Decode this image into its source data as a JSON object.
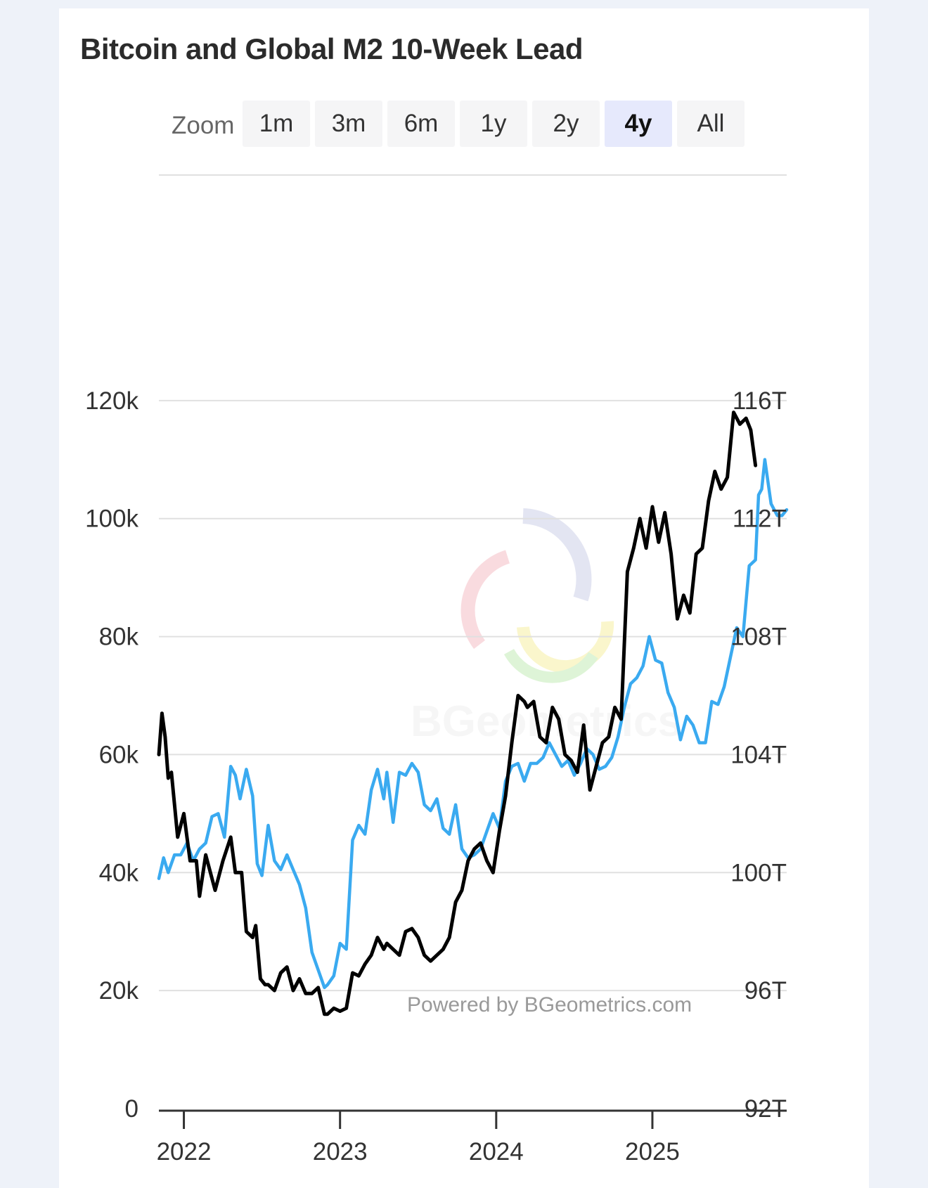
{
  "title": "Bitcoin and Global M2 10-Week Lead",
  "zoom": {
    "label": "Zoom",
    "options": [
      "1m",
      "3m",
      "6m",
      "1y",
      "2y",
      "4y",
      "All"
    ],
    "selected": "4y"
  },
  "credits": "Powered by BGeometrics.com",
  "watermark": "BGeometrics",
  "colors": {
    "btc": "#000000",
    "m2": "#3aaaf0",
    "grid": "#e0e0e0",
    "axis": "#333333",
    "zoom_active_bg": "#e6e9fc"
  },
  "chart_data": {
    "type": "line",
    "title": "Bitcoin and Global M2 10-Week Lead",
    "x_unit": "year",
    "x_ticks": [
      2022,
      2023,
      2024,
      2025
    ],
    "x_tick_labels": [
      "2022",
      "2023",
      "2024",
      "2025"
    ],
    "xlim": [
      2021.84,
      2025.86
    ],
    "y_left": {
      "ylim": [
        0,
        140000
      ],
      "ticks": [
        0,
        20000,
        40000,
        60000,
        80000,
        100000,
        120000
      ],
      "tick_labels": [
        "0",
        "20k",
        "40k",
        "60k",
        "80k",
        "100k",
        "120k"
      ]
    },
    "y_right": {
      "ylim": [
        92,
        120
      ],
      "ticks": [
        92,
        96,
        100,
        104,
        108,
        112,
        116
      ],
      "tick_labels": [
        "92T",
        "96T",
        "100T",
        "104T",
        "108T",
        "112T",
        "116T"
      ]
    },
    "grid": true,
    "series": [
      {
        "axis": "left",
        "color": "#000000",
        "x": [
          2021.84,
          2021.86,
          2021.88,
          2021.9,
          2021.92,
          2021.96,
          2022.0,
          2022.04,
          2022.08,
          2022.1,
          2022.14,
          2022.2,
          2022.25,
          2022.3,
          2022.33,
          2022.37,
          2022.4,
          2022.44,
          2022.46,
          2022.49,
          2022.52,
          2022.54,
          2022.58,
          2022.62,
          2022.66,
          2022.7,
          2022.74,
          2022.78,
          2022.82,
          2022.86,
          2022.9,
          2022.92,
          2022.96,
          2023.0,
          2023.04,
          2023.08,
          2023.12,
          2023.16,
          2023.2,
          2023.24,
          2023.28,
          2023.3,
          2023.34,
          2023.38,
          2023.42,
          2023.46,
          2023.5,
          2023.54,
          2023.58,
          2023.62,
          2023.66,
          2023.7,
          2023.74,
          2023.78,
          2023.82,
          2023.86,
          2023.9,
          2023.94,
          2023.98,
          2024.02,
          2024.06,
          2024.1,
          2024.14,
          2024.18,
          2024.2,
          2024.24,
          2024.28,
          2024.32,
          2024.36,
          2024.4,
          2024.44,
          2024.48,
          2024.52,
          2024.56,
          2024.6,
          2024.64,
          2024.68,
          2024.72,
          2024.76,
          2024.8,
          2024.84,
          2024.88,
          2024.92,
          2024.96,
          2025.0,
          2025.04,
          2025.08,
          2025.12,
          2025.16,
          2025.2,
          2025.24,
          2025.28,
          2025.32,
          2025.36,
          2025.4,
          2025.44,
          2025.48,
          2025.52,
          2025.56,
          2025.6,
          2025.63,
          2025.66
        ],
        "values": [
          60000,
          67000,
          63000,
          56000,
          57000,
          46000,
          50000,
          42000,
          42000,
          36000,
          43000,
          37000,
          42000,
          46000,
          40000,
          40000,
          30000,
          29000,
          31000,
          22000,
          21000,
          21000,
          20000,
          23000,
          24000,
          20000,
          22000,
          19500,
          19500,
          20500,
          16000,
          16000,
          17000,
          16500,
          17000,
          23000,
          22500,
          24500,
          26000,
          29000,
          27000,
          28000,
          27000,
          26000,
          30000,
          30500,
          29000,
          26000,
          25000,
          26000,
          27000,
          29000,
          35000,
          37000,
          42000,
          44000,
          45000,
          42000,
          40000,
          47000,
          53000,
          62000,
          70000,
          69000,
          68000,
          69000,
          63000,
          62000,
          68000,
          66000,
          60000,
          59000,
          57000,
          65000,
          54000,
          58000,
          62000,
          63000,
          68000,
          66000,
          91000,
          95000,
          100000,
          95000,
          102000,
          96000,
          101000,
          94000,
          83000,
          87000,
          84000,
          94000,
          95000,
          103000,
          108000,
          105000,
          107000,
          118000,
          116000,
          117000,
          115000,
          109000
        ]
      },
      {
        "axis": "right",
        "color": "#3aaaf0",
        "x": [
          2021.84,
          2021.87,
          2021.9,
          2021.94,
          2021.98,
          2022.02,
          2022.06,
          2022.1,
          2022.14,
          2022.18,
          2022.22,
          2022.26,
          2022.3,
          2022.33,
          2022.36,
          2022.4,
          2022.44,
          2022.47,
          2022.5,
          2022.54,
          2022.58,
          2022.62,
          2022.66,
          2022.7,
          2022.74,
          2022.78,
          2022.82,
          2022.86,
          2022.9,
          2022.92,
          2022.96,
          2023.0,
          2023.04,
          2023.08,
          2023.12,
          2023.16,
          2023.2,
          2023.24,
          2023.28,
          2023.3,
          2023.34,
          2023.38,
          2023.42,
          2023.46,
          2023.5,
          2023.54,
          2023.58,
          2023.62,
          2023.66,
          2023.7,
          2023.74,
          2023.78,
          2023.82,
          2023.86,
          2023.9,
          2023.94,
          2023.98,
          2024.02,
          2024.06,
          2024.1,
          2024.14,
          2024.18,
          2024.22,
          2024.26,
          2024.3,
          2024.34,
          2024.38,
          2024.42,
          2024.46,
          2024.5,
          2024.54,
          2024.58,
          2024.62,
          2024.66,
          2024.7,
          2024.74,
          2024.78,
          2024.82,
          2024.86,
          2024.9,
          2024.94,
          2024.98,
          2025.02,
          2025.06,
          2025.1,
          2025.14,
          2025.18,
          2025.22,
          2025.26,
          2025.3,
          2025.34,
          2025.38,
          2025.42,
          2025.46,
          2025.5,
          2025.54,
          2025.58,
          2025.62,
          2025.66,
          2025.68,
          2025.7,
          2025.72,
          2025.76,
          2025.8,
          2025.83,
          2025.86
        ],
        "values": [
          99.8,
          100.5,
          100.0,
          100.6,
          100.6,
          101.0,
          100.4,
          100.8,
          101.0,
          101.9,
          102.0,
          101.2,
          103.6,
          103.3,
          102.5,
          103.5,
          102.6,
          100.3,
          99.9,
          101.6,
          100.4,
          100.1,
          100.6,
          100.1,
          99.6,
          98.8,
          97.3,
          96.7,
          96.1,
          96.2,
          96.5,
          97.6,
          97.4,
          101.1,
          101.6,
          101.3,
          102.8,
          103.5,
          102.5,
          103.4,
          101.7,
          103.4,
          103.3,
          103.7,
          103.4,
          102.3,
          102.1,
          102.5,
          101.5,
          101.3,
          102.3,
          100.8,
          100.5,
          100.6,
          100.8,
          101.4,
          102.0,
          101.5,
          103.1,
          103.6,
          103.7,
          103.1,
          103.7,
          103.7,
          103.9,
          104.4,
          104.0,
          103.6,
          103.8,
          103.3,
          103.7,
          104.2,
          104.0,
          103.5,
          103.6,
          103.9,
          104.6,
          105.6,
          106.4,
          106.6,
          107.0,
          108.0,
          107.2,
          107.1,
          106.1,
          105.6,
          104.5,
          105.3,
          105.0,
          104.4,
          104.4,
          105.8,
          105.7,
          106.3,
          107.3,
          108.3,
          108.0,
          110.4,
          110.6,
          112.8,
          113.0,
          114.0,
          112.5,
          112.1,
          112.1,
          112.3
        ]
      }
    ]
  }
}
